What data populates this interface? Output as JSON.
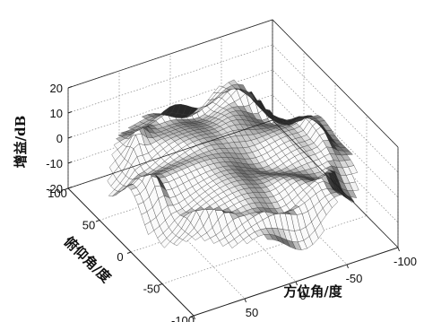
{
  "chart_data": {
    "type": "surface3d",
    "title": "",
    "xlabel": "方位角/度",
    "ylabel": "俯仰角/度",
    "zlabel": "增益/dB",
    "x_ticks": [
      "100",
      "50",
      "0",
      "-50",
      "-100"
    ],
    "y_ticks": [
      "100",
      "50",
      "0",
      "-50",
      "-100"
    ],
    "z_ticks": [
      "20",
      "10",
      "0",
      "-10",
      "-20"
    ],
    "xlim": [
      -100,
      100
    ],
    "ylim": [
      -100,
      100
    ],
    "zlim": [
      -20,
      20
    ],
    "grid": true,
    "colormap": "gray"
  }
}
